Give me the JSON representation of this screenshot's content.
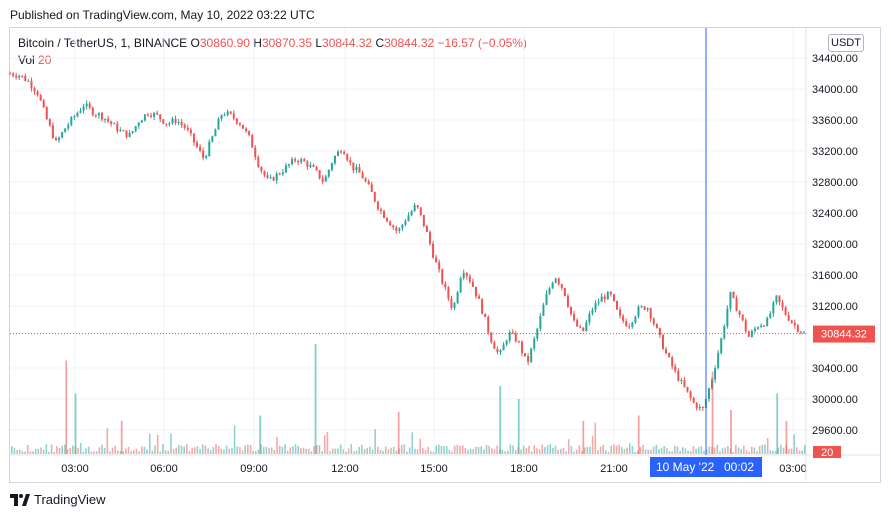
{
  "published": "Published on TradingView.com, May 10, 2022 03:22 UTC",
  "legend": {
    "symbol": "Bitcoin / TetherUS, 1, BINANCE",
    "o_label": "O",
    "o": "30860.90",
    "h_label": "H",
    "h": "30870.35",
    "l_label": "L",
    "l": "30844.32",
    "c_label": "C",
    "c": "30844.32",
    "change": "−16.57 (−0.05%)",
    "vol_label": "Vol",
    "vol": "20"
  },
  "currency_button": "USDT",
  "footer": {
    "brand": "TradingView"
  },
  "colors": {
    "up": "#26a69a",
    "down": "#ef5350",
    "crosshair": "#2962ff",
    "price_tag": "#ef5350"
  },
  "chart_data": {
    "type": "candlestick",
    "ylim": [
      29400,
      34600
    ],
    "y_ticks": [
      "34400.00",
      "34000.00",
      "33600.00",
      "33200.00",
      "32800.00",
      "32400.00",
      "32000.00",
      "31600.00",
      "31200.00",
      "30400.00",
      "30000.00",
      "29600.00"
    ],
    "x_ticks": [
      "03:00",
      "06:00",
      "09:00",
      "12:00",
      "15:00",
      "18:00",
      "21:00",
      "03:00"
    ],
    "crosshair_label": {
      "date": "10 May '22",
      "time": "00:02"
    },
    "last_price": "30844.32",
    "last_price_value": 30844.32,
    "volume_tag": "20",
    "price_path": [
      [
        0,
        34200
      ],
      [
        1,
        34180
      ],
      [
        2,
        34100
      ],
      [
        3,
        33950
      ],
      [
        4,
        33600
      ],
      [
        5,
        33300
      ],
      [
        6,
        33500
      ],
      [
        7,
        33650
      ],
      [
        8,
        33800
      ],
      [
        9,
        33700
      ],
      [
        10,
        33650
      ],
      [
        11,
        33550
      ],
      [
        12,
        33450
      ],
      [
        13,
        33400
      ],
      [
        14,
        33600
      ],
      [
        15,
        33700
      ],
      [
        16,
        33650
      ],
      [
        17,
        33550
      ],
      [
        18,
        33600
      ],
      [
        19,
        33500
      ],
      [
        20,
        33300
      ],
      [
        21,
        33100
      ],
      [
        22,
        33400
      ],
      [
        23,
        33700
      ],
      [
        24,
        33650
      ],
      [
        25,
        33550
      ],
      [
        26,
        33350
      ],
      [
        27,
        33000
      ],
      [
        28,
        32800
      ],
      [
        29,
        32900
      ],
      [
        30,
        33000
      ],
      [
        31,
        33100
      ],
      [
        32,
        33050
      ],
      [
        33,
        32950
      ],
      [
        34,
        32800
      ],
      [
        35,
        33100
      ],
      [
        36,
        33250
      ],
      [
        37,
        33000
      ],
      [
        38,
        32900
      ],
      [
        39,
        32700
      ],
      [
        40,
        32450
      ],
      [
        41,
        32300
      ],
      [
        42,
        32150
      ],
      [
        43,
        32350
      ],
      [
        44,
        32500
      ],
      [
        45,
        32200
      ],
      [
        46,
        31800
      ],
      [
        47,
        31450
      ],
      [
        48,
        31150
      ],
      [
        49,
        31700
      ],
      [
        50,
        31500
      ],
      [
        51,
        31200
      ],
      [
        52,
        30800
      ],
      [
        53,
        30550
      ],
      [
        54,
        30850
      ],
      [
        55,
        30750
      ],
      [
        56,
        30450
      ],
      [
        57,
        30850
      ],
      [
        58,
        31300
      ],
      [
        59,
        31600
      ],
      [
        60,
        31400
      ],
      [
        61,
        31000
      ],
      [
        62,
        30850
      ],
      [
        63,
        31150
      ],
      [
        64,
        31300
      ],
      [
        65,
        31350
      ],
      [
        66,
        31050
      ],
      [
        67,
        30950
      ],
      [
        68,
        31150
      ],
      [
        69,
        31200
      ],
      [
        70,
        30900
      ],
      [
        71,
        30600
      ],
      [
        72,
        30350
      ],
      [
        73,
        30150
      ],
      [
        74,
        29950
      ],
      [
        75,
        29850
      ],
      [
        76,
        30250
      ],
      [
        77,
        30750
      ],
      [
        78,
        31350
      ],
      [
        79,
        31100
      ],
      [
        80,
        30800
      ],
      [
        81,
        30950
      ],
      [
        82,
        31000
      ],
      [
        83,
        31300
      ],
      [
        84,
        31100
      ],
      [
        85,
        30950
      ],
      [
        86,
        30844
      ]
    ],
    "volume_spikes": [
      [
        6,
        0.85
      ],
      [
        7,
        0.55
      ],
      [
        12,
        0.3
      ],
      [
        27,
        0.35
      ],
      [
        33,
        1.0
      ],
      [
        42,
        0.38
      ],
      [
        53,
        0.62
      ],
      [
        55,
        0.5
      ],
      [
        62,
        0.3
      ],
      [
        68,
        0.35
      ],
      [
        76,
        0.75
      ],
      [
        78,
        0.4
      ],
      [
        83,
        0.55
      ],
      [
        84,
        0.3
      ]
    ]
  }
}
